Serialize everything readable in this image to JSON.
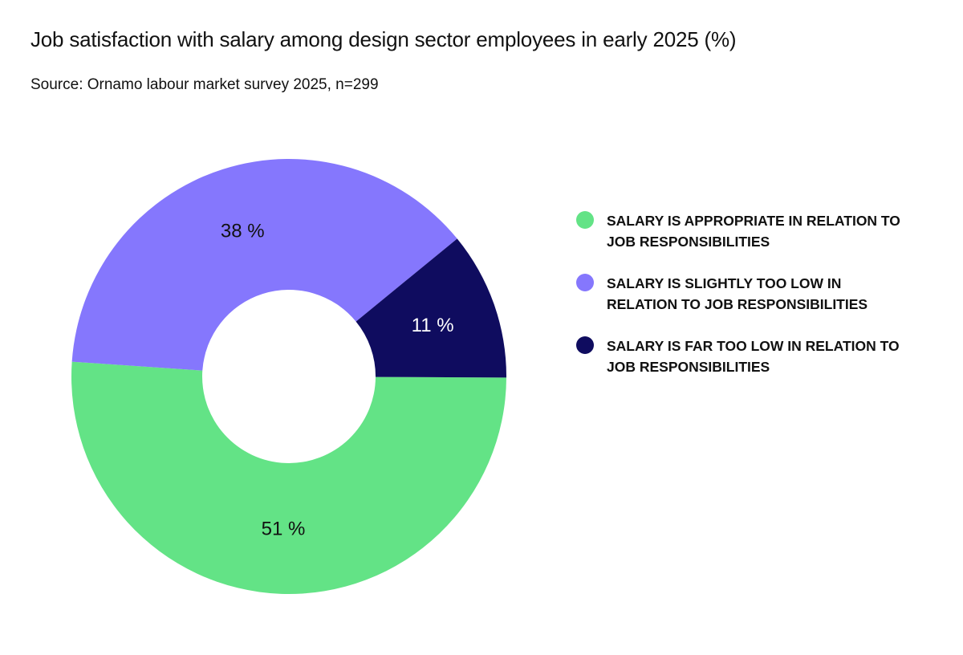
{
  "chart_data": {
    "type": "pie",
    "donut": true,
    "title": "Job satisfaction with salary among design sector employees in early 2025 (%)",
    "subtitle": "Source: Ornamo labour market survey 2025, n=299",
    "unit": "%",
    "slices": [
      {
        "label": "SALARY IS APPROPRIATE IN RELATION TO JOB RESPONSIBILITIES",
        "value": 51,
        "display": "51 %",
        "color": "#63e386"
      },
      {
        "label": "SALARY IS SLIGHTLY TOO LOW IN RELATION TO JOB RESPONSIBILITIES",
        "value": 38,
        "display": "38 %",
        "color": "#8577fd"
      },
      {
        "label": "SALARY IS FAR TOO LOW IN RELATION TO JOB RESPONSIBILITIES",
        "value": 11,
        "display": "11 %",
        "color": "#0f0c5f"
      }
    ],
    "legend_position": "right"
  }
}
